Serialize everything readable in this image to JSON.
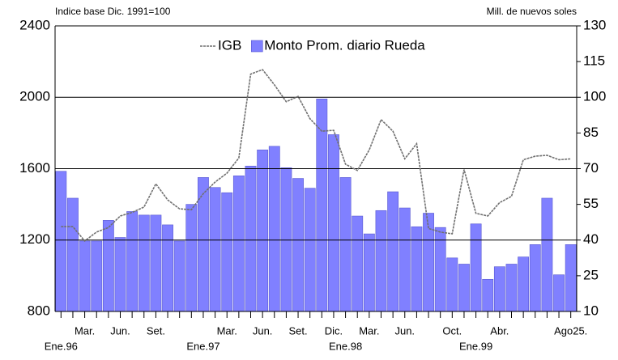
{
  "chart_data": {
    "type": "bar-line",
    "left_axis_label": "Indice base Dic. 1991=100",
    "right_axis_label": "Mill. de nuevos soles",
    "categories": [
      "Ene.96",
      null,
      "Mar.",
      null,
      null,
      "Jun.",
      null,
      null,
      "Set.",
      null,
      null,
      null,
      "Ene.97",
      null,
      "Mar.",
      null,
      null,
      "Jun.",
      null,
      null,
      "Set.",
      null,
      null,
      "Dic.",
      "Ene.98",
      null,
      "Mar.",
      null,
      null,
      "Jun.",
      null,
      null,
      null,
      "Oct.",
      null,
      "Ene.99",
      null,
      "Abr.",
      null,
      null,
      null,
      null,
      null,
      "Ago25."
    ],
    "series": [
      {
        "name": "IGB",
        "kind": "line",
        "axis": "y",
        "color": "#707070",
        "values": [
          1275,
          1275,
          1195,
          1245,
          1270,
          1335,
          1355,
          1385,
          1515,
          1425,
          1375,
          1370,
          1460,
          1525,
          1575,
          1660,
          2130,
          2155,
          2070,
          1975,
          2005,
          1880,
          1810,
          1815,
          1625,
          1590,
          1705,
          1875,
          1810,
          1655,
          1740,
          1265,
          1245,
          1235,
          1595,
          1350,
          1335,
          1410,
          1445,
          1650,
          1670,
          1675,
          1650,
          1655
        ]
      },
      {
        "name": "Monto Prom. diario Rueda",
        "kind": "bar",
        "axis": "y2",
        "color": "#8080ff",
        "values": [
          68.9,
          57.6,
          39.6,
          39.6,
          48.3,
          41.1,
          52,
          50.5,
          50.5,
          46.4,
          39.6,
          55,
          66.3,
          62.1,
          59.9,
          67,
          71.1,
          77.9,
          79.4,
          70.4,
          65.9,
          61.8,
          99.3,
          84.3,
          66.3,
          50.1,
          42.6,
          52.4,
          60.3,
          53.5,
          45.6,
          51.3,
          45.3,
          32.5,
          29.9,
          46.8,
          23.5,
          28.8,
          29.9,
          32.9,
          38.1,
          57.6,
          25.4,
          38.1
        ]
      }
    ],
    "ylim": [
      800,
      2400
    ],
    "yticks": [
      800,
      1200,
      1600,
      2000,
      2400
    ],
    "y2lim": [
      10,
      130
    ],
    "y2ticks": [
      10,
      25,
      40,
      55,
      70,
      85,
      100,
      115,
      130
    ],
    "grid": true
  }
}
